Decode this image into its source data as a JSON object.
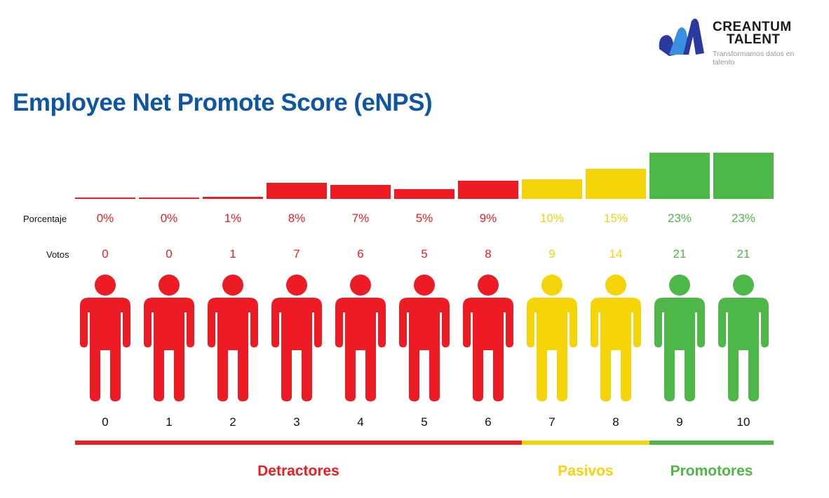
{
  "title": "Employee Net Promote Score (eNPS)",
  "logo": {
    "name_line1": "CREANTUM",
    "name_line2": "TALENT",
    "tagline": "Transformamos datos en talento"
  },
  "row_labels": {
    "percent": "Porcentaje",
    "votes": "Votos"
  },
  "colors": {
    "detractor": "#ED1C24",
    "passive": "#F5D40A",
    "promoter": "#4DB848",
    "title": "#0E56A4"
  },
  "chart_data": {
    "type": "bar",
    "title": "Employee Net Promote Score (eNPS)",
    "categories": [
      "0",
      "1",
      "2",
      "3",
      "4",
      "5",
      "6",
      "7",
      "8",
      "9",
      "10"
    ],
    "percent_labels": [
      "0%",
      "0%",
      "1%",
      "8%",
      "7%",
      "5%",
      "9%",
      "10%",
      "15%",
      "23%",
      "23%"
    ],
    "percent": [
      0,
      0,
      1,
      8,
      7,
      5,
      9,
      10,
      15,
      23,
      23
    ],
    "votes": [
      0,
      0,
      1,
      7,
      6,
      5,
      8,
      9,
      14,
      21,
      21
    ],
    "group_of_score": [
      "detractor",
      "detractor",
      "detractor",
      "detractor",
      "detractor",
      "detractor",
      "detractor",
      "passive",
      "passive",
      "promoter",
      "promoter"
    ],
    "groups": [
      {
        "key": "detractor",
        "label": "Detractores",
        "from": 0,
        "to": 6
      },
      {
        "key": "passive",
        "label": "Pasivos",
        "from": 7,
        "to": 8
      },
      {
        "key": "promoter",
        "label": "Promotores",
        "from": 9,
        "to": 10
      }
    ]
  }
}
